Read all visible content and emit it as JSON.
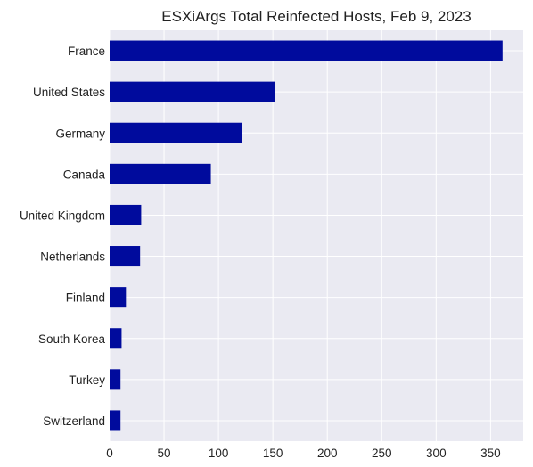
{
  "chart_data": {
    "type": "bar",
    "orientation": "horizontal",
    "title": "ESXiArgs Total Reinfected Hosts, Feb 9, 2023",
    "xlabel": "",
    "ylabel": "",
    "categories": [
      "France",
      "United States",
      "Germany",
      "Canada",
      "United Kingdom",
      "Netherlands",
      "Finland",
      "South Korea",
      "Turkey",
      "Switzerland"
    ],
    "values": [
      361,
      152,
      122,
      93,
      29,
      28,
      15,
      11,
      10,
      10
    ],
    "xlim": [
      0,
      380
    ],
    "xticks": [
      0,
      50,
      100,
      150,
      200,
      250,
      300,
      350
    ],
    "grid": true,
    "legend": "none",
    "colors": {
      "bar": "#000b9d",
      "plot_background": "#eaeaf2",
      "grid": "#ffffff",
      "text": "#222222"
    }
  }
}
